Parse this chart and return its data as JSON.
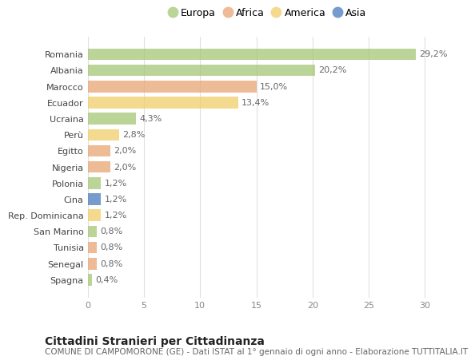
{
  "countries": [
    "Romania",
    "Albania",
    "Marocco",
    "Ecuador",
    "Ucraina",
    "Perù",
    "Egitto",
    "Nigeria",
    "Polonia",
    "Cina",
    "Rep. Dominicana",
    "San Marino",
    "Tunisia",
    "Senegal",
    "Spagna"
  ],
  "values": [
    29.2,
    20.2,
    15.0,
    13.4,
    4.3,
    2.8,
    2.0,
    2.0,
    1.2,
    1.2,
    1.2,
    0.8,
    0.8,
    0.8,
    0.4
  ],
  "labels": [
    "29,2%",
    "20,2%",
    "15,0%",
    "13,4%",
    "4,3%",
    "2,8%",
    "2,0%",
    "2,0%",
    "1,2%",
    "1,2%",
    "1,2%",
    "0,8%",
    "0,8%",
    "0,8%",
    "0,4%"
  ],
  "continents": [
    "Europa",
    "Europa",
    "Africa",
    "America",
    "Europa",
    "America",
    "Africa",
    "Africa",
    "Europa",
    "Asia",
    "America",
    "Europa",
    "Africa",
    "Africa",
    "Europa"
  ],
  "colors": {
    "Europa": "#a8c87a",
    "Africa": "#e8a878",
    "America": "#f0d070",
    "Asia": "#5080c0"
  },
  "title": "Cittadini Stranieri per Cittadinanza",
  "subtitle": "COMUNE DI CAMPOMORONE (GE) - Dati ISTAT al 1° gennaio di ogni anno - Elaborazione TUTTITALIA.IT",
  "xlim": [
    0,
    32
  ],
  "xticks": [
    0,
    5,
    10,
    15,
    20,
    25,
    30
  ],
  "background_color": "#ffffff",
  "grid_color": "#e0e0e0",
  "bar_height": 0.72,
  "title_fontsize": 10,
  "subtitle_fontsize": 7.5,
  "label_fontsize": 8,
  "tick_fontsize": 8,
  "legend_fontsize": 9,
  "ytick_fontsize": 8
}
